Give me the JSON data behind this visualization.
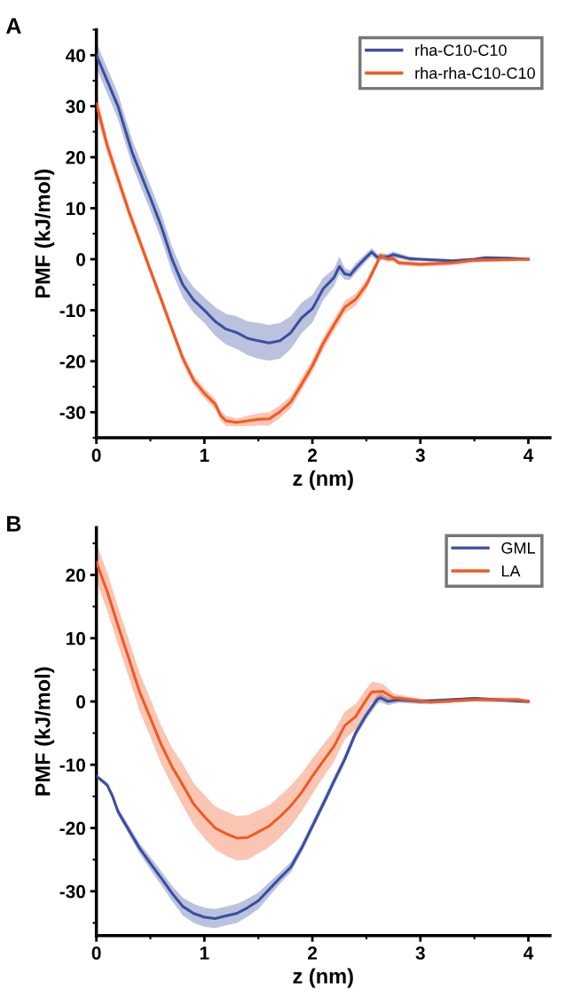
{
  "chart_data": [
    {
      "type": "line",
      "xlabel": "z (nm)",
      "ylabel": "PMF (kJ/mol)",
      "annotations": [
        "A"
      ],
      "xlim": [
        0,
        4.2
      ],
      "xticks": [
        0,
        1,
        2,
        3,
        4
      ],
      "ylim": [
        -35,
        45
      ],
      "yticks": [
        -30,
        -20,
        -10,
        0,
        10,
        20,
        30,
        40
      ],
      "grid": false,
      "legend": "top right",
      "line_style": "solid",
      "marker": "none",
      "series": [
        {
          "name": "rha-C10-C10",
          "color": "#3b4fa1",
          "x": [
            0,
            0.1,
            0.2,
            0.33,
            0.5,
            0.6,
            0.7,
            0.8,
            0.9,
            1.0,
            1.1,
            1.2,
            1.3,
            1.4,
            1.5,
            1.6,
            1.7,
            1.8,
            1.9,
            2.0,
            2.1,
            2.2,
            2.25,
            2.3,
            2.35,
            2.4,
            2.5,
            2.55,
            2.6,
            2.7,
            2.75,
            2.9,
            3.0,
            3.3,
            3.5,
            3.6,
            3.8,
            4.0
          ],
          "values": [
            40,
            35,
            30,
            21,
            12,
            6.5,
            0,
            -5,
            -8,
            -10,
            -12.2,
            -13.7,
            -14.4,
            -15.5,
            -16,
            -16.4,
            -16,
            -14.4,
            -11.5,
            -9.7,
            -5.8,
            -3.6,
            -1.4,
            -2.9,
            -3.1,
            -1.8,
            0.4,
            1.4,
            0.4,
            0.5,
            0.9,
            0.1,
            0,
            -0.3,
            0,
            0.3,
            0.2,
            0
          ],
          "lower": [
            37.5,
            32.5,
            27.5,
            18.5,
            9.5,
            4,
            -2.5,
            -7.5,
            -10.5,
            -12.5,
            -15,
            -16.7,
            -17.6,
            -18.8,
            -19.5,
            -19.9,
            -19.5,
            -17.6,
            -14.5,
            -12.4,
            -8,
            -5.3,
            -2.9,
            -4,
            -4,
            -2.8,
            -0.4,
            0.6,
            -0.3,
            -0.1,
            0.3,
            -0.3,
            -0.3,
            -0.6,
            -0.3,
            0,
            -0.1,
            -0.2
          ],
          "upper": [
            42.5,
            37.5,
            32.5,
            23.5,
            14.5,
            9,
            2.5,
            -2.5,
            -5.5,
            -7.5,
            -9.4,
            -10.7,
            -11.2,
            -12.2,
            -12.5,
            -12.9,
            -12.5,
            -11.2,
            -8.5,
            -7,
            -3.6,
            -1.9,
            0.5,
            -1.8,
            -2.2,
            -0.8,
            1.2,
            2.2,
            1.1,
            1.1,
            1.5,
            0.5,
            0.3,
            0,
            0.3,
            0.6,
            0.5,
            0.2
          ]
        },
        {
          "name": "rha-rha-C10-C10",
          "color": "#f05a22",
          "x": [
            0,
            0.1,
            0.2,
            0.3,
            0.4,
            0.5,
            0.6,
            0.7,
            0.8,
            0.9,
            1.0,
            1.1,
            1.15,
            1.2,
            1.3,
            1.4,
            1.5,
            1.6,
            1.7,
            1.8,
            1.9,
            2.0,
            2.1,
            2.2,
            2.3,
            2.4,
            2.5,
            2.6,
            2.63,
            2.7,
            2.75,
            2.8,
            3.0,
            3.3,
            3.5,
            4.0
          ],
          "values": [
            30.5,
            22.3,
            15.8,
            9.4,
            3.6,
            -2.2,
            -7.9,
            -13.7,
            -19.4,
            -23.7,
            -26.3,
            -28.4,
            -30.6,
            -31.7,
            -32,
            -31.7,
            -31.4,
            -31.3,
            -29.9,
            -28,
            -24.5,
            -20.9,
            -16.5,
            -12.9,
            -9.4,
            -7.9,
            -5,
            -0.7,
            0.7,
            0,
            0.1,
            -0.7,
            -1,
            -0.7,
            -0.2,
            0
          ],
          "lower": [
            28.5,
            20.8,
            14.5,
            8.2,
            2.5,
            -3.2,
            -8.9,
            -14.7,
            -20.4,
            -24.7,
            -27.3,
            -29.4,
            -31.6,
            -32.7,
            -32.8,
            -32.7,
            -32.6,
            -32.6,
            -31.1,
            -29.2,
            -25.7,
            -22.1,
            -17.7,
            -14.1,
            -10.6,
            -9.1,
            -6,
            -1.5,
            0.1,
            -0.5,
            -0.4,
            -1.2,
            -1.5,
            -1.2,
            -0.6,
            -0.3
          ],
          "upper": [
            32.5,
            23.8,
            17.1,
            10.6,
            4.7,
            -1.2,
            -6.9,
            -12.7,
            -18.4,
            -22.7,
            -25.3,
            -27.4,
            -29.6,
            -30.7,
            -31.2,
            -30.7,
            -30.2,
            -30,
            -28.7,
            -26.8,
            -23.3,
            -19.7,
            -15.3,
            -11.7,
            -8.2,
            -6.7,
            -4,
            0.1,
            1.3,
            0.5,
            0.6,
            -0.2,
            -0.5,
            -0.2,
            0.2,
            0.3
          ]
        }
      ]
    },
    {
      "type": "line",
      "xlabel": "z (nm)",
      "ylabel": "PMF (kJ/mol)",
      "annotations": [
        "B"
      ],
      "xlim": [
        0,
        4.2
      ],
      "xticks": [
        0,
        1,
        2,
        3,
        4
      ],
      "ylim": [
        -37,
        27.5
      ],
      "yticks": [
        -30,
        -20,
        -10,
        0,
        10,
        20
      ],
      "grid": false,
      "legend": "top right",
      "line_style": "solid",
      "marker": "none",
      "series": [
        {
          "name": "GML",
          "color": "#3b4fa1",
          "x": [
            0,
            0.1,
            0.15,
            0.2,
            0.3,
            0.4,
            0.5,
            0.6,
            0.7,
            0.8,
            0.9,
            1.0,
            1.1,
            1.2,
            1.3,
            1.4,
            1.5,
            1.6,
            1.7,
            1.8,
            1.9,
            2.0,
            2.1,
            2.2,
            2.3,
            2.4,
            2.5,
            2.6,
            2.63,
            2.7,
            2.8,
            3.0,
            3.5,
            4.0
          ],
          "values": [
            -11.8,
            -13.2,
            -15,
            -17.4,
            -20.3,
            -23.2,
            -25.6,
            -27.9,
            -30.3,
            -32.4,
            -33.5,
            -34.1,
            -34.3,
            -33.9,
            -33.5,
            -32.6,
            -31.5,
            -29.7,
            -27.9,
            -26.2,
            -23.2,
            -19.7,
            -16.2,
            -12.6,
            -9.1,
            -5,
            -2.1,
            0.3,
            0.6,
            0,
            0.3,
            0,
            0.5,
            0
          ],
          "lower": [
            -12.1,
            -13.6,
            -15.5,
            -18,
            -21,
            -24,
            -26.6,
            -29,
            -31.5,
            -33.8,
            -35,
            -35.6,
            -35.8,
            -35.4,
            -35,
            -34,
            -32.8,
            -30.8,
            -28.8,
            -27,
            -23.9,
            -20.4,
            -16.9,
            -13.3,
            -9.8,
            -5.7,
            -2.8,
            -0.4,
            -0.1,
            -0.6,
            -0.2,
            -0.4,
            0,
            -0.3
          ],
          "upper": [
            -11.5,
            -12.8,
            -14.5,
            -16.8,
            -19.6,
            -22.4,
            -24.6,
            -26.8,
            -29.1,
            -31,
            -32,
            -32.6,
            -32.8,
            -32.4,
            -32,
            -31.2,
            -30.2,
            -28.6,
            -27,
            -25.4,
            -22.5,
            -19,
            -15.5,
            -11.9,
            -8.4,
            -4.3,
            -1.4,
            1,
            1.3,
            0.6,
            0.8,
            0.4,
            0.6,
            0.3
          ]
        },
        {
          "name": "LA",
          "color": "#f05a22",
          "x": [
            0,
            0.1,
            0.2,
            0.3,
            0.4,
            0.5,
            0.6,
            0.7,
            0.8,
            0.9,
            1.0,
            1.1,
            1.2,
            1.3,
            1.4,
            1.5,
            1.6,
            1.7,
            1.8,
            1.9,
            2.0,
            2.1,
            2.2,
            2.3,
            2.4,
            2.5,
            2.55,
            2.65,
            2.75,
            2.9,
            3.1,
            3.5,
            3.9,
            4.0
          ],
          "values": [
            22,
            17.4,
            12,
            6.8,
            1.5,
            -2.6,
            -6.8,
            -10.3,
            -13.2,
            -16.2,
            -18.2,
            -20,
            -20.9,
            -21.6,
            -21.5,
            -20.6,
            -19.7,
            -18.2,
            -16.5,
            -14.4,
            -11.8,
            -9.4,
            -7.1,
            -3.8,
            -2.4,
            0.3,
            1.5,
            1.6,
            0.6,
            0.3,
            -0.1,
            0.3,
            0.3,
            0
          ],
          "lower": [
            19,
            14.4,
            9,
            3.8,
            -1.5,
            -5.6,
            -9.8,
            -13.3,
            -16.5,
            -19.5,
            -21.6,
            -23.4,
            -24.4,
            -25.1,
            -25,
            -24,
            -23,
            -21.5,
            -19.7,
            -17.4,
            -14.6,
            -12,
            -9.5,
            -6,
            -4.4,
            -1.4,
            -0.1,
            0.4,
            -0.1,
            -0.1,
            -0.4,
            0,
            0,
            -0.3
          ],
          "upper": [
            25,
            20.4,
            15,
            9.8,
            4.5,
            0.4,
            -3.8,
            -7.3,
            -9.9,
            -12.9,
            -14.8,
            -16.6,
            -17.4,
            -18.1,
            -18,
            -17.2,
            -16.4,
            -14.9,
            -13.3,
            -11.4,
            -9,
            -6.8,
            -4.7,
            -1.6,
            -0.4,
            2,
            3.1,
            2.8,
            1.3,
            0.7,
            0.2,
            0.6,
            0.6,
            0.3
          ]
        }
      ]
    }
  ]
}
